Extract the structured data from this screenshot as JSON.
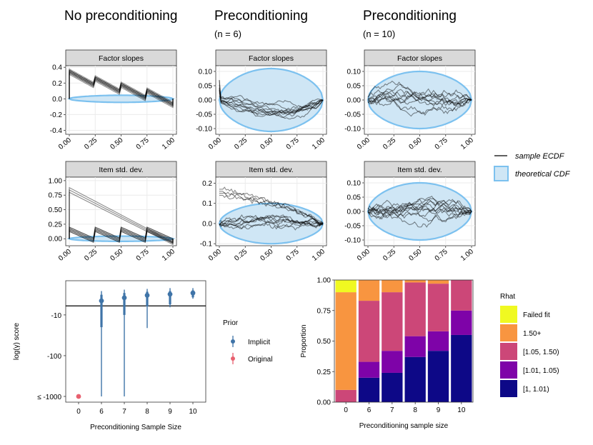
{
  "chart_data": [
    {
      "type": "ecdf_difference",
      "column_title": "No preconditioning",
      "column_subtitle": "",
      "strip_label": "Factor slopes",
      "xlim": [
        0,
        1
      ],
      "ylim": [
        -0.45,
        0.42
      ],
      "x_ticks": [
        "0.00",
        "0.25",
        "0.50",
        "0.75",
        "1.00"
      ],
      "y_ticks": [
        {
          "label": "0.4",
          "value": 0.4
        },
        {
          "label": "0.2",
          "value": 0.2
        },
        {
          "label": "0.0",
          "value": 0.0
        },
        {
          "label": "-0.2",
          "value": -0.2
        },
        {
          "label": "-0.4",
          "value": -0.4
        }
      ],
      "band_halfwidth": 0.045,
      "series_style": "sawtooth",
      "series_params": {
        "n": 10,
        "start": 0.35,
        "steps": [
          0.25,
          0.5,
          0.75
        ],
        "jump": 0.1,
        "spread": 0.03
      }
    },
    {
      "type": "ecdf_difference",
      "column_title": "Preconditioning",
      "column_subtitle": "(n = 6)",
      "strip_label": "Factor slopes",
      "xlim": [
        0,
        1
      ],
      "ylim": [
        -0.12,
        0.12
      ],
      "x_ticks": [
        "0.00",
        "0.25",
        "0.50",
        "0.75",
        "1.00"
      ],
      "y_ticks": [
        {
          "label": "0.10",
          "value": 0.1
        },
        {
          "label": "0.05",
          "value": 0.05
        },
        {
          "label": "0.00",
          "value": 0.0
        },
        {
          "label": "-0.05",
          "value": -0.05
        },
        {
          "label": "-0.10",
          "value": -0.1
        }
      ],
      "band_halfwidth": 0.11,
      "series_style": "random_walk",
      "series_params": {
        "n": 10,
        "drift": -0.07,
        "amp": 0.035,
        "seed": 11
      }
    },
    {
      "type": "ecdf_difference",
      "column_title": "Preconditioning",
      "column_subtitle": "(n = 10)",
      "strip_label": "Factor slopes",
      "xlim": [
        0,
        1
      ],
      "ylim": [
        -0.12,
        0.12
      ],
      "x_ticks": [
        "0.00",
        "0.25",
        "0.50",
        "0.75",
        "1.00"
      ],
      "y_ticks": [
        {
          "label": "0.10",
          "value": 0.1
        },
        {
          "label": "0.05",
          "value": 0.05
        },
        {
          "label": "0.00",
          "value": 0.0
        },
        {
          "label": "-0.05",
          "value": -0.05
        },
        {
          "label": "-0.10",
          "value": -0.1
        }
      ],
      "band_halfwidth": 0.1,
      "series_style": "random_walk",
      "series_params": {
        "n": 10,
        "drift": 0.0,
        "amp": 0.05,
        "seed": 23
      }
    },
    {
      "type": "ecdf_difference",
      "column_title": "No preconditioning",
      "column_subtitle": "",
      "strip_label": "Item std. dev.",
      "xlim": [
        0,
        1
      ],
      "ylim": [
        -0.12,
        1.06
      ],
      "x_ticks": [
        "0.00",
        "0.25",
        "0.50",
        "0.75",
        "1.00"
      ],
      "y_ticks": [
        {
          "label": "1.00",
          "value": 1.0
        },
        {
          "label": "0.75",
          "value": 0.75
        },
        {
          "label": "0.50",
          "value": 0.5
        },
        {
          "label": "0.25",
          "value": 0.25
        },
        {
          "label": "0.00",
          "value": 0.0
        }
      ],
      "band_halfwidth": 0.045,
      "series_style": "std_dev_none",
      "series_params": {
        "n_high": 3,
        "n_low": 8,
        "high_start": 0.88,
        "low_start": 0.2
      }
    },
    {
      "type": "ecdf_difference",
      "column_title": "Preconditioning",
      "column_subtitle": "(n = 6)",
      "strip_label": "Item std. dev.",
      "xlim": [
        0,
        1
      ],
      "ylim": [
        -0.11,
        0.23
      ],
      "x_ticks": [
        "0.00",
        "0.25",
        "0.50",
        "0.75",
        "1.00"
      ],
      "y_ticks": [
        {
          "label": "0.2",
          "value": 0.2
        },
        {
          "label": "0.1",
          "value": 0.1
        },
        {
          "label": "0.0",
          "value": 0.0
        },
        {
          "label": "-0.1",
          "value": -0.1
        }
      ],
      "band_halfwidth": 0.1,
      "series_style": "std_dev_six",
      "series_params": {
        "n_high": 4,
        "n_low": 8,
        "seed": 41
      }
    },
    {
      "type": "ecdf_difference",
      "column_title": "Preconditioning",
      "column_subtitle": "(n = 10)",
      "strip_label": "Item std. dev.",
      "xlim": [
        0,
        1
      ],
      "ylim": [
        -0.12,
        0.12
      ],
      "x_ticks": [
        "0.00",
        "0.25",
        "0.50",
        "0.75",
        "1.00"
      ],
      "y_ticks": [
        {
          "label": "0.10",
          "value": 0.1
        },
        {
          "label": "0.05",
          "value": 0.05
        },
        {
          "label": "0.00",
          "value": 0.0
        },
        {
          "label": "-0.05",
          "value": -0.05
        },
        {
          "label": "-0.10",
          "value": -0.1
        }
      ],
      "band_halfwidth": 0.1,
      "series_style": "random_walk",
      "series_params": {
        "n": 11,
        "drift": 0.0,
        "amp": 0.05,
        "seed": 57
      }
    },
    {
      "type": "pointrange",
      "xlabel": "Preconditioning Sample Size",
      "ylabel": "log(γ) score",
      "categories": [
        "0",
        "6",
        "7",
        "8",
        "9",
        "10"
      ],
      "y_ticks": [
        {
          "label": "-10",
          "value": -10
        },
        {
          "label": "-100",
          "value": -100
        },
        {
          "label": "≤ -1000",
          "value": -1000
        }
      ],
      "reference_line": -6,
      "series": [
        {
          "name": "Implicit",
          "color": "#3f74a8",
          "points": [
            {
              "x": "6",
              "median": -4.5,
              "q_lo": -20,
              "q_hi": -3.2,
              "min": -1000,
              "max": -2.6
            },
            {
              "x": "7",
              "median": -3.8,
              "q_lo": -10,
              "q_hi": -2.9,
              "min": -1000,
              "max": -2.4
            },
            {
              "x": "8",
              "median": -3.3,
              "q_lo": -6.2,
              "q_hi": -2.7,
              "min": -21,
              "max": -2.3
            },
            {
              "x": "9",
              "median": -3.1,
              "q_lo": -5.5,
              "q_hi": -2.6,
              "min": -6.5,
              "max": -2.2
            },
            {
              "x": "10",
              "median": -2.9,
              "q_lo": -3.7,
              "q_hi": -2.5,
              "min": -4.0,
              "max": -2.2
            }
          ]
        },
        {
          "name": "Original",
          "color": "#e8606f",
          "points": [
            {
              "x": "0",
              "median": -1000,
              "q_lo": -1000,
              "q_hi": -1000,
              "min": -1000,
              "max": -1000
            }
          ]
        }
      ],
      "legend": {
        "title": "Prior",
        "placement": "right"
      }
    },
    {
      "type": "stacked_bar",
      "xlabel": "Preconditioning sample size",
      "ylabel": "Proportion",
      "categories": [
        "0",
        "6",
        "7",
        "8",
        "9",
        "10"
      ],
      "ylim": [
        0,
        1
      ],
      "y_ticks": [
        "0.00",
        "0.25",
        "0.50",
        "0.75",
        "1.00"
      ],
      "series": [
        {
          "name": "[1, 1.01)",
          "color": "#0d0887",
          "values": [
            0.0,
            0.2,
            0.24,
            0.37,
            0.42,
            0.55
          ]
        },
        {
          "name": "[1.01, 1.05)",
          "color": "#7e03a8",
          "values": [
            0.0,
            0.13,
            0.18,
            0.17,
            0.16,
            0.2
          ]
        },
        {
          "name": "[1.05, 1.50)",
          "color": "#cc4778",
          "values": [
            0.1,
            0.5,
            0.48,
            0.44,
            0.39,
            0.25
          ]
        },
        {
          "name": "1.50+",
          "color": "#f89540",
          "values": [
            0.8,
            0.17,
            0.1,
            0.02,
            0.03,
            0.0
          ]
        },
        {
          "name": "Failed fit",
          "color": "#f0f921",
          "values": [
            0.1,
            0.0,
            0.0,
            0.0,
            0.0,
            0.0
          ]
        }
      ],
      "legend": {
        "title": "Rhat",
        "placement": "right",
        "order": [
          "Failed fit",
          "1.50+",
          "[1.05, 1.50)",
          "[1.01, 1.05)",
          "[1, 1.01)"
        ]
      }
    }
  ],
  "ecdf_legend": {
    "sample": "sample ECDF",
    "theoretical": "theoretical CDF",
    "line_color": "#000000",
    "band_fill": "#cfe6f5",
    "band_edge": "#7cc1ef"
  }
}
